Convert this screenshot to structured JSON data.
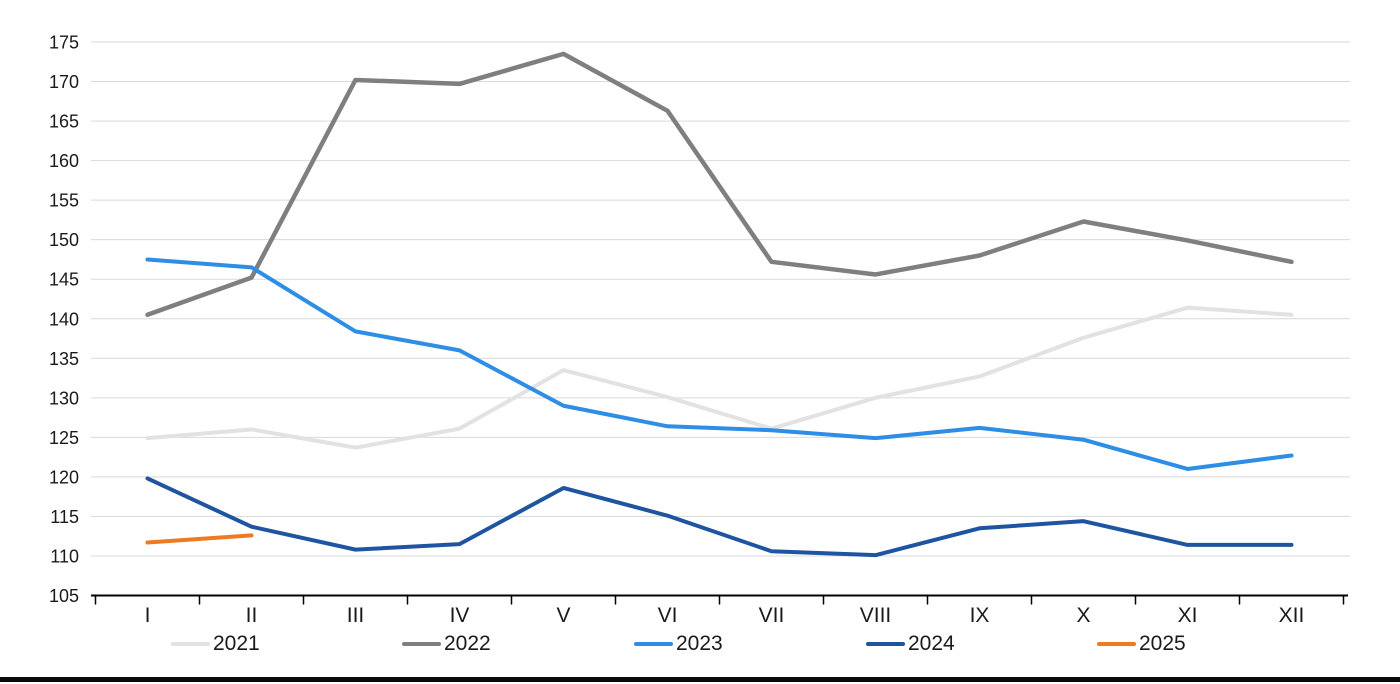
{
  "chart_data": {
    "type": "line",
    "title": "",
    "xlabel": "",
    "ylabel": "",
    "categories": [
      "I",
      "II",
      "III",
      "IV",
      "V",
      "VI",
      "VII",
      "VIII",
      "IX",
      "X",
      "XI",
      "XII"
    ],
    "y_ticks": [
      105,
      110,
      115,
      120,
      125,
      130,
      135,
      140,
      145,
      150,
      155,
      160,
      165,
      170,
      175
    ],
    "ylim": [
      105,
      175
    ],
    "grid": true,
    "legend_position": "bottom",
    "colors": {
      "gridline": "#d9d9d9",
      "axis": "#000000",
      "tick_label": "#1a1a1a",
      "bottom_border": "#0a0a0a"
    },
    "series": [
      {
        "name": "2021",
        "color": "#e2e2e2",
        "stroke_width": 4,
        "values": [
          124.9,
          126.0,
          123.7,
          126.1,
          133.5,
          130.1,
          126.1,
          130.0,
          132.7,
          137.6,
          141.4,
          140.5
        ]
      },
      {
        "name": "2022",
        "color": "#7f7f7f",
        "stroke_width": 4.5,
        "values": [
          140.5,
          145.2,
          170.2,
          169.7,
          173.5,
          166.3,
          147.2,
          145.6,
          148.0,
          152.3,
          149.9,
          147.2
        ]
      },
      {
        "name": "2023",
        "color": "#2e8de4",
        "stroke_width": 4,
        "values": [
          147.5,
          146.5,
          138.4,
          136.0,
          129.0,
          126.4,
          125.9,
          124.9,
          126.2,
          124.7,
          121.0,
          122.7
        ]
      },
      {
        "name": "2024",
        "color": "#1f55a0",
        "stroke_width": 4,
        "values": [
          119.8,
          113.7,
          110.8,
          111.5,
          118.6,
          115.1,
          110.6,
          110.1,
          113.5,
          114.4,
          111.4,
          111.4
        ]
      },
      {
        "name": "2025",
        "color": "#ee7b22",
        "stroke_width": 4,
        "values": [
          111.7,
          112.6
        ]
      }
    ]
  }
}
